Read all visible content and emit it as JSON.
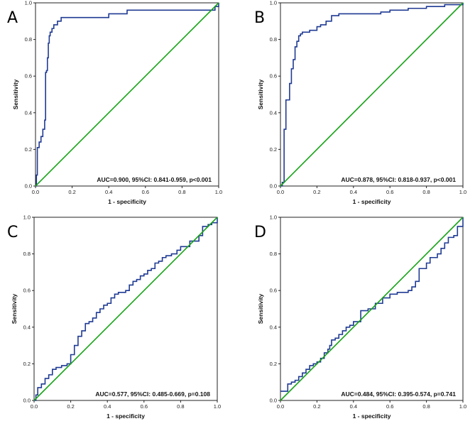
{
  "colors": {
    "roc": "#1f3a93",
    "reference": "#19a319",
    "frame": "#222222"
  },
  "chart_data": [
    {
      "type": "line",
      "panel": "A",
      "xlabel": "1 - specificity",
      "ylabel": "Sensitivity",
      "xlim": [
        0,
        1
      ],
      "ylim": [
        0,
        1
      ],
      "xticks": [
        "0.0",
        "0.2",
        "0.4",
        "0.6",
        "0.8",
        "1.0"
      ],
      "yticks": [
        "0.0",
        "0.2",
        "0.4",
        "0.6",
        "0.8",
        "1.0"
      ],
      "annotation": "AUC=0.900, 95%CI: 0.841-0.959, p<0.001",
      "series": [
        {
          "name": "ROC",
          "step": true,
          "x": [
            0,
            0.005,
            0.01,
            0.02,
            0.03,
            0.04,
            0.05,
            0.055,
            0.06,
            0.065,
            0.07,
            0.075,
            0.08,
            0.09,
            0.1,
            0.12,
            0.14,
            0.4,
            0.5,
            0.98,
            1.0
          ],
          "y": [
            0,
            0.06,
            0.21,
            0.24,
            0.27,
            0.31,
            0.36,
            0.62,
            0.63,
            0.7,
            0.78,
            0.82,
            0.84,
            0.86,
            0.88,
            0.9,
            0.92,
            0.94,
            0.96,
            0.98,
            1.0
          ]
        },
        {
          "name": "Reference line",
          "x": [
            0,
            1
          ],
          "y": [
            0,
            1
          ]
        }
      ]
    },
    {
      "type": "line",
      "panel": "B",
      "xlabel": "1 - specificity",
      "ylabel": "Sensitivity",
      "xlim": [
        0,
        1
      ],
      "ylim": [
        0,
        1
      ],
      "xticks": [
        "0.0",
        "0.2",
        "0.4",
        "0.6",
        "0.8",
        "1.0"
      ],
      "yticks": [
        "0.0",
        "0.2",
        "0.4",
        "0.6",
        "0.8",
        "1.0"
      ],
      "annotation": "AUC=0.878, 95%CI: 0.818-0.937, p<0.001",
      "series": [
        {
          "name": "ROC",
          "step": true,
          "x": [
            0,
            0.01,
            0.02,
            0.03,
            0.05,
            0.06,
            0.07,
            0.08,
            0.09,
            0.1,
            0.11,
            0.12,
            0.14,
            0.16,
            0.2,
            0.22,
            0.25,
            0.28,
            0.32,
            0.38,
            0.55,
            0.6,
            0.7,
            0.8,
            0.9,
            1.0
          ],
          "y": [
            0,
            0.02,
            0.31,
            0.47,
            0.56,
            0.64,
            0.69,
            0.76,
            0.79,
            0.82,
            0.83,
            0.84,
            0.84,
            0.85,
            0.87,
            0.88,
            0.9,
            0.93,
            0.94,
            0.94,
            0.95,
            0.96,
            0.97,
            0.98,
            0.99,
            1.0
          ]
        },
        {
          "name": "Reference line",
          "x": [
            0,
            1
          ],
          "y": [
            0,
            1
          ]
        }
      ]
    },
    {
      "type": "line",
      "panel": "C",
      "xlabel": "1 - specificity",
      "ylabel": "Sensitivity",
      "xlim": [
        0,
        1
      ],
      "ylim": [
        0,
        1
      ],
      "xticks": [
        "0.0",
        "0.2",
        "0.4",
        "0.6",
        "0.8",
        "1.0"
      ],
      "yticks": [
        "0.0",
        "0.2",
        "0.4",
        "0.6",
        "0.8",
        "1.0"
      ],
      "annotation": "AUC=0.577, 95%CI: 0.485-0.669, p=0.108",
      "series": [
        {
          "name": "ROC",
          "step": true,
          "x": [
            0,
            0.01,
            0.02,
            0.04,
            0.06,
            0.08,
            0.1,
            0.12,
            0.15,
            0.18,
            0.2,
            0.22,
            0.24,
            0.26,
            0.28,
            0.3,
            0.32,
            0.34,
            0.36,
            0.38,
            0.4,
            0.42,
            0.44,
            0.46,
            0.5,
            0.52,
            0.54,
            0.56,
            0.58,
            0.6,
            0.62,
            0.64,
            0.66,
            0.68,
            0.7,
            0.72,
            0.75,
            0.78,
            0.8,
            0.85,
            0.88,
            0.9,
            0.92,
            0.95,
            0.97,
            1.0
          ],
          "y": [
            0,
            0.03,
            0.07,
            0.09,
            0.12,
            0.14,
            0.17,
            0.18,
            0.19,
            0.2,
            0.25,
            0.3,
            0.35,
            0.38,
            0.42,
            0.43,
            0.45,
            0.48,
            0.5,
            0.52,
            0.53,
            0.56,
            0.58,
            0.59,
            0.6,
            0.63,
            0.65,
            0.66,
            0.68,
            0.69,
            0.71,
            0.72,
            0.75,
            0.76,
            0.78,
            0.79,
            0.8,
            0.82,
            0.84,
            0.87,
            0.87,
            0.9,
            0.95,
            0.96,
            0.97,
            1.0
          ]
        },
        {
          "name": "Reference line",
          "x": [
            0,
            1
          ],
          "y": [
            0,
            1
          ]
        }
      ]
    },
    {
      "type": "line",
      "panel": "D",
      "xlabel": "1 - specificity",
      "ylabel": "Sensitivity",
      "xlim": [
        0,
        1
      ],
      "ylim": [
        0,
        1
      ],
      "xticks": [
        "0.0",
        "0.2",
        "0.4",
        "0.6",
        "0.8",
        "1.0"
      ],
      "yticks": [
        "0.0",
        "0.2",
        "0.4",
        "0.6",
        "0.8",
        "1.0"
      ],
      "annotation": "AUC=0.484, 95%CI: 0.395-0.574, p=0.741",
      "series": [
        {
          "name": "ROC",
          "step": true,
          "x": [
            0,
            0.04,
            0.06,
            0.08,
            0.1,
            0.12,
            0.14,
            0.16,
            0.18,
            0.2,
            0.22,
            0.24,
            0.26,
            0.27,
            0.28,
            0.3,
            0.32,
            0.34,
            0.36,
            0.38,
            0.4,
            0.44,
            0.48,
            0.52,
            0.56,
            0.6,
            0.64,
            0.68,
            0.7,
            0.72,
            0.74,
            0.76,
            0.8,
            0.82,
            0.86,
            0.88,
            0.9,
            0.92,
            0.95,
            0.97,
            1.0
          ],
          "y": [
            0.05,
            0.09,
            0.1,
            0.11,
            0.13,
            0.15,
            0.17,
            0.19,
            0.2,
            0.21,
            0.23,
            0.26,
            0.28,
            0.3,
            0.33,
            0.34,
            0.36,
            0.38,
            0.4,
            0.41,
            0.43,
            0.49,
            0.5,
            0.53,
            0.56,
            0.58,
            0.59,
            0.59,
            0.6,
            0.62,
            0.65,
            0.72,
            0.75,
            0.78,
            0.8,
            0.83,
            0.86,
            0.89,
            0.9,
            0.95,
            1.0
          ]
        },
        {
          "name": "Reference line",
          "x": [
            0,
            1
          ],
          "y": [
            0,
            1
          ]
        }
      ]
    }
  ]
}
